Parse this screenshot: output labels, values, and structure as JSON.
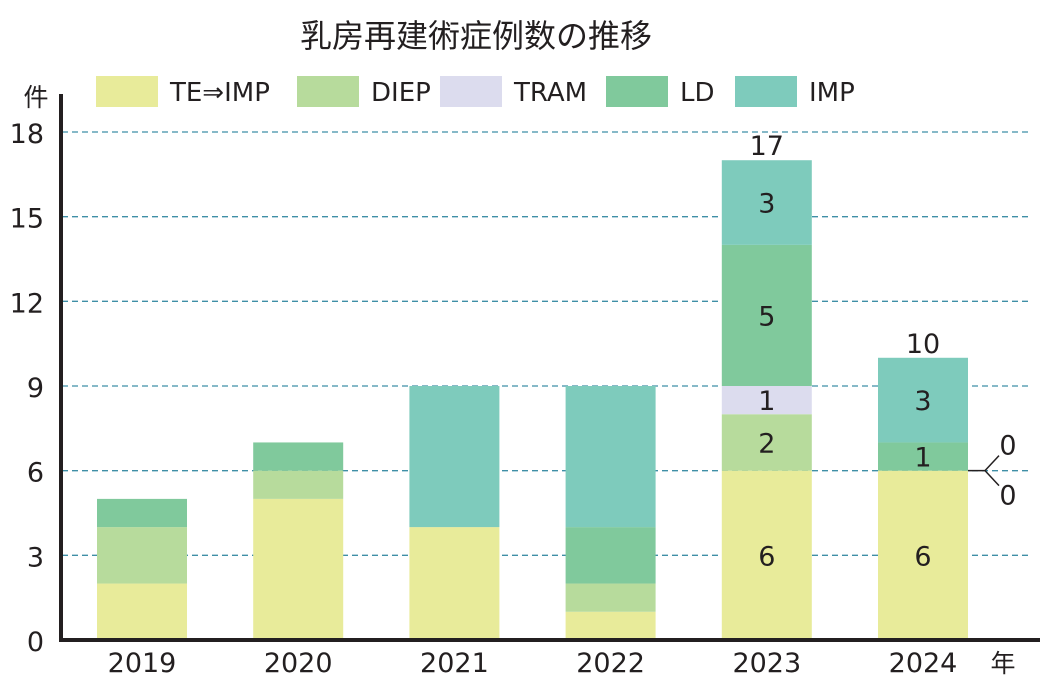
{
  "chart_data": {
    "type": "bar",
    "stacked": true,
    "title": "乳房再建術症例数の推移",
    "xlabel": "年",
    "ylabel": "件",
    "ylim": [
      0,
      18
    ],
    "yticks": [
      0,
      3,
      6,
      9,
      12,
      15,
      18
    ],
    "grid": true,
    "legend_position": "top",
    "categories": [
      "2019",
      "2020",
      "2021",
      "2022",
      "2023",
      "2024"
    ],
    "series": [
      {
        "name": "TE⇒IMP",
        "color": "#e8eb9a",
        "values": [
          2,
          5,
          4,
          1,
          6,
          6
        ]
      },
      {
        "name": "DIEP",
        "color": "#b7db9c",
        "values": [
          2,
          1,
          0,
          1,
          2,
          0
        ]
      },
      {
        "name": "TRAM",
        "color": "#dcdcee",
        "values": [
          0,
          0,
          0,
          0,
          1,
          0
        ]
      },
      {
        "name": "LD",
        "color": "#80c99c",
        "values": [
          1,
          1,
          0,
          2,
          5,
          1
        ]
      },
      {
        "name": "IMP",
        "color": "#7ecbbc",
        "values": [
          0,
          0,
          5,
          5,
          3,
          3
        ]
      }
    ],
    "labeled_categories": [
      "2023",
      "2024"
    ],
    "totals": {
      "2023": "17",
      "2024": "10"
    },
    "zero_callout": {
      "category": "2024",
      "labels": [
        "0",
        "0"
      ]
    }
  }
}
